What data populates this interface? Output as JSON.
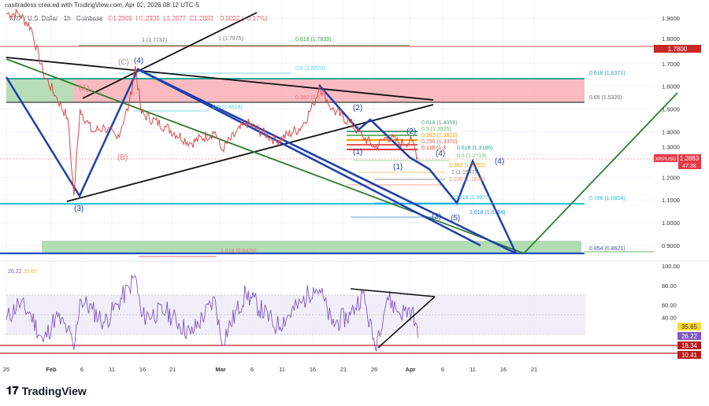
{
  "header": {
    "credit": "casitradess created with TradingView.com, Apr 02, 2026 08:12 UTC-5",
    "symbol": "XRP / U.S. Dollar · 1h · Coinbase",
    "open": "O1.2906",
    "high": "H1.2936",
    "low": "L1.2877",
    "close": "C1.2883",
    "change": "−0.0022 (−0.17%)"
  },
  "price_badges": {
    "level_1780": "1.7800",
    "symbol_tag": "XRPUSD",
    "last_price": "1.2883",
    "countdown": "47:38"
  },
  "rsi": {
    "rsi_value": "26.22",
    "ma_value": "35.65",
    "level_a": "18.34",
    "level_b": "10.41"
  },
  "annotations": {
    "fib_1_1773": "1 (1.7737)",
    "fib_1_1787": "1 (1.7875)",
    "fib_0618_1783": "0.618 (1.7839)",
    "fib_05_1657": "0.5 (1.6570)",
    "fib_0618_1637": "0.618 (1.6371)",
    "fib_065_1532": "0.65 (1.5320)",
    "fib_0382_15": "0.382 (1.5",
    "fib_05_1491": "0.5 (1.4918)",
    "fib_0786_1085": "0.786 (1.0854)",
    "fib_0854_0862": "0.854 (0.8621)",
    "fib_1618_0842": "1.618 (0.8428)",
    "c_0618_1405": "0.618 (1.4059)",
    "c_05_1392": "0.5 (1.3925)",
    "c_0382_1382": "0.382 (1.3822)",
    "c_0236_1337": "0.236 (1.3370)",
    "c_0118_13": "0.118 (1.3",
    "c_0618_1318": "0.618 (1.3186)",
    "c_05_1271": "0.5 (1.2719)",
    "c_0382_1235": "0.382 (1.2352)",
    "c_1_1194": "1 (1.1947)",
    "c_0236_1167": "0.236 (1.1676)",
    "c_0618_1087": "0.618 (1.0877)",
    "c_1618_1016": "1.618 (1.0164)"
  },
  "waves": {
    "w4_top": "(4)",
    "wc": "(C)",
    "wa": "(A)",
    "wb": "(B)",
    "w3": "(3)",
    "w2a": "(2)",
    "w1a": "(1)",
    "w2b": "(2)",
    "w1b": "(1)",
    "w4a": "(4)",
    "w4b": "(4)",
    "w3b": "(3)",
    "w5": "(5)"
  },
  "brand": "TradingView",
  "colors": {
    "up": "#26a69a",
    "down": "#ef5350",
    "wave_blue": "#1e3fae",
    "rsi": "#7e57c2",
    "rsi_ma": "#fbc02d",
    "teal": "#26c6da",
    "green_zone": "#a5d6a7",
    "red_zone": "#f8b4b8"
  },
  "chart_data": [
    {
      "type": "line",
      "title": "XRP / U.S. Dollar · 1h · Coinbase",
      "x_ticks": [
        "25",
        "Feb",
        "6",
        "11",
        "16",
        "21",
        "Mar",
        "6",
        "11",
        "16",
        "21",
        "26",
        "Apr",
        "6",
        "11",
        "16",
        "21"
      ],
      "y_ticks": [
        "1.9000",
        "1.8000",
        "1.7000",
        "1.6000",
        "1.5000",
        "1.4000",
        "1.3000",
        "1.2000",
        "1.1000",
        "1.0000",
        "0.9000"
      ],
      "ylim": [
        0.85,
        1.95
      ],
      "grid": true,
      "series": [
        {
          "x": [
            "Jan 25",
            "Jan 27",
            "Jan 29",
            "Jan 31",
            "Feb 2",
            "Feb 4",
            "Feb 5",
            "Feb 6",
            "Feb 8",
            "Feb 10",
            "Feb 12",
            "Feb 14",
            "Feb 15",
            "Feb 16",
            "Feb 20",
            "Feb 24",
            "Feb 28",
            "Mar 1",
            "Mar 5",
            "Mar 10",
            "Mar 14",
            "Mar 16",
            "Mar 17",
            "Mar 19",
            "Mar 22",
            "Mar 24",
            "Mar 26",
            "Mar 28",
            "Mar 30",
            "Apr 1",
            "Apr 2"
          ],
          "y": [
            1.92,
            1.92,
            1.86,
            1.66,
            1.56,
            1.46,
            1.12,
            1.5,
            1.4,
            1.42,
            1.37,
            1.52,
            1.69,
            1.48,
            1.42,
            1.35,
            1.4,
            1.32,
            1.44,
            1.36,
            1.42,
            1.52,
            1.6,
            1.5,
            1.44,
            1.38,
            1.33,
            1.38,
            1.35,
            1.36,
            1.2883
          ]
        }
      ]
    },
    {
      "type": "line",
      "title": "RSI",
      "y_ticks": [
        "100.00",
        "80.00",
        "60.00",
        "40.00"
      ],
      "ylim": [
        5,
        100
      ],
      "bands": [
        30,
        50,
        70
      ],
      "series": [
        {
          "x": [
            "Jan 25",
            "Jan 27",
            "Jan 29",
            "Jan 31",
            "Feb 2",
            "Feb 4",
            "Feb 5",
            "Feb 6",
            "Feb 8",
            "Feb 10",
            "Feb 12",
            "Feb 14",
            "Feb 15",
            "Feb 16",
            "Feb 20",
            "Feb 24",
            "Feb 28",
            "Mar 1",
            "Mar 5",
            "Mar 10",
            "Mar 14",
            "Mar 16",
            "Mar 17",
            "Mar 19",
            "Mar 22",
            "Mar 24",
            "Mar 26",
            "Mar 28",
            "Mar 30",
            "Apr 1",
            "Apr 2"
          ],
          "y": [
            45,
            62,
            50,
            22,
            48,
            35,
            14,
            66,
            55,
            42,
            60,
            78,
            90,
            48,
            54,
            30,
            66,
            22,
            72,
            38,
            62,
            78,
            76,
            40,
            50,
            72,
            18,
            68,
            52,
            55,
            26.22
          ]
        }
      ]
    }
  ]
}
